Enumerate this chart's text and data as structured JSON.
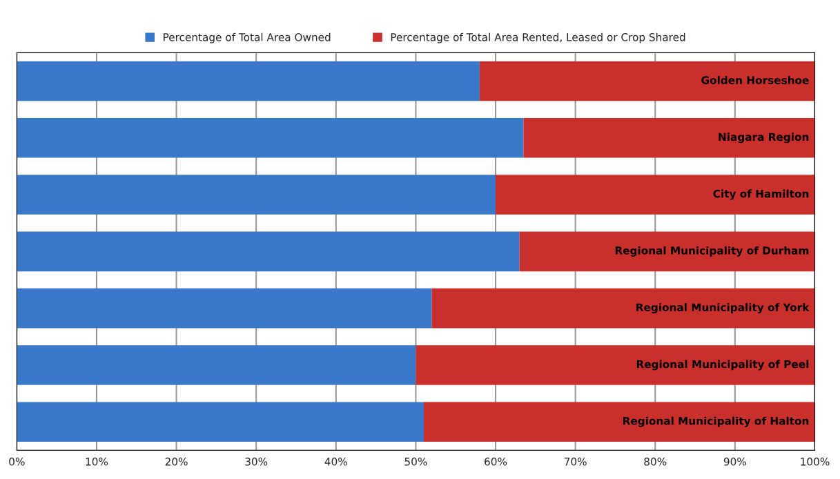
{
  "chart_data": {
    "type": "bar",
    "orientation": "horizontal",
    "stacked": true,
    "categories": [
      "Golden Horseshoe",
      "Niagara Region",
      "City of Hamilton",
      "Regional Municipality of Durham",
      "Regional Municipality of York",
      "Regional Municipality of Peel",
      "Regional Municipality of Halton"
    ],
    "series": [
      {
        "name": "Percentage of Total Area Owned",
        "color": "#3a78c9",
        "values": [
          58,
          63.5,
          60,
          63,
          52,
          50,
          51
        ]
      },
      {
        "name": "Percentage of Total Area Rented, Leased or Crop Shared",
        "color": "#c9302c",
        "values": [
          42,
          36.5,
          40,
          37,
          48,
          50,
          49
        ]
      }
    ],
    "xlim": [
      0,
      100
    ],
    "xticks": [
      {
        "value": 0,
        "label": "0%"
      },
      {
        "value": 10,
        "label": "10%"
      },
      {
        "value": 20,
        "label": "20%"
      },
      {
        "value": 30,
        "label": "30%"
      },
      {
        "value": 40,
        "label": "40%"
      },
      {
        "value": 50,
        "label": "50%"
      },
      {
        "value": 60,
        "label": "60%"
      },
      {
        "value": 70,
        "label": "70%"
      },
      {
        "value": 80,
        "label": "80%"
      },
      {
        "value": 90,
        "label": "90%"
      },
      {
        "value": 100,
        "label": "100%"
      }
    ],
    "grid": "x",
    "legend": "top"
  }
}
